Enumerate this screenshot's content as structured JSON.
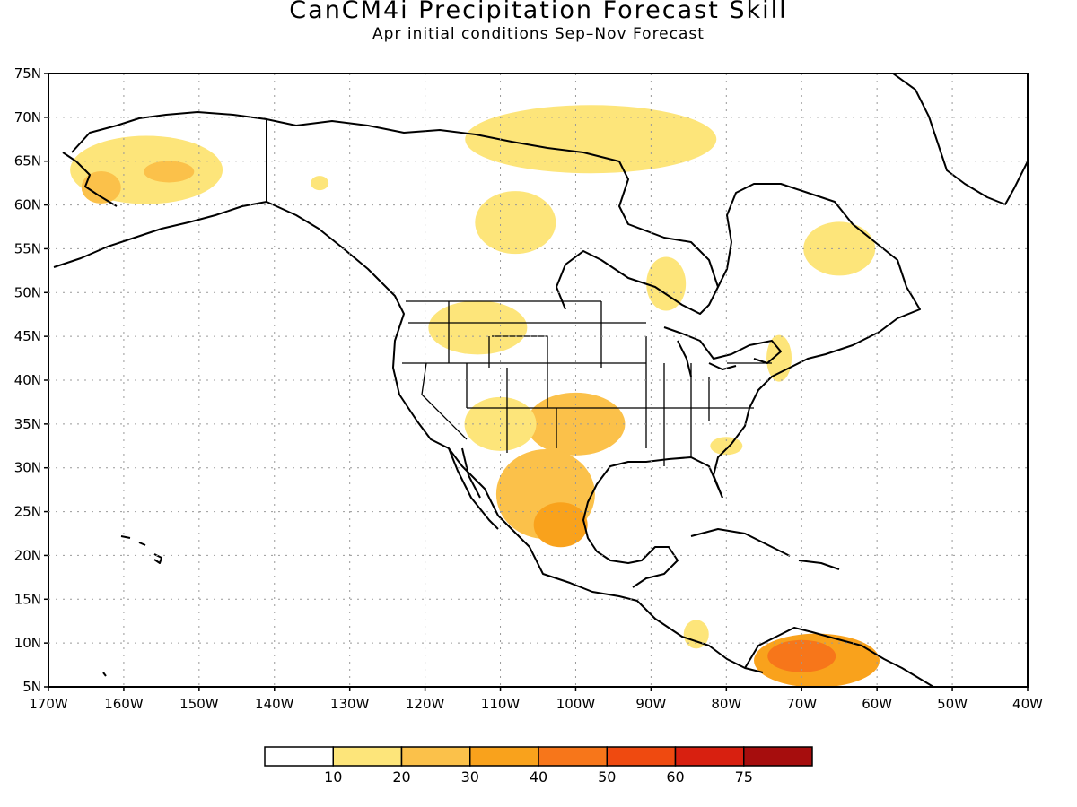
{
  "title": "CanCM4i Precipitation Forecast Skill",
  "subtitle": "Apr initial conditions  Sep–Nov Forecast",
  "map": {
    "lon_range": [
      -170,
      -40
    ],
    "lat_range": [
      5,
      75
    ],
    "lat_ticks": [
      "5N",
      "10N",
      "15N",
      "20N",
      "25N",
      "30N",
      "35N",
      "40N",
      "45N",
      "50N",
      "55N",
      "60N",
      "65N",
      "70N",
      "75N"
    ],
    "lon_ticks": [
      "170W",
      "160W",
      "150W",
      "140W",
      "130W",
      "120W",
      "110W",
      "100W",
      "90W",
      "80W",
      "70W",
      "60W",
      "50W",
      "40W"
    ],
    "grid": "dotted",
    "land_color": "#ffffff",
    "coastline_color": "#000000"
  },
  "skill_regions": [
    {
      "name": "alaska",
      "lon": -157,
      "lat": 64,
      "level": 1
    },
    {
      "name": "alaska-core",
      "lon": -154,
      "lat": 63.8,
      "level": 2
    },
    {
      "name": "southwest-alaska",
      "lon": -163,
      "lat": 62,
      "level": 2
    },
    {
      "name": "yukon-patch",
      "lon": -134,
      "lat": 62.5,
      "level": 1
    },
    {
      "name": "northwest-territories",
      "lon": -108,
      "lat": 58,
      "level": 1
    },
    {
      "name": "canadian-arctic",
      "lon": -98,
      "lat": 67.5,
      "level": 1
    },
    {
      "name": "hudson-patch",
      "lon": -88,
      "lat": 51,
      "level": 1
    },
    {
      "name": "labrador",
      "lon": -65,
      "lat": 55,
      "level": 1
    },
    {
      "name": "northern-rockies",
      "lon": -113,
      "lat": 46,
      "level": 1
    },
    {
      "name": "southern-plains",
      "lon": -100,
      "lat": 35,
      "level": 2
    },
    {
      "name": "colorado-plateau",
      "lon": -110,
      "lat": 35,
      "level": 1
    },
    {
      "name": "northern-mexico",
      "lon": -104,
      "lat": 27,
      "level": 2
    },
    {
      "name": "central-mexico-core",
      "lon": -102,
      "lat": 23.5,
      "level": 3
    },
    {
      "name": "northeast-us",
      "lon": -73,
      "lat": 42.5,
      "level": 1
    },
    {
      "name": "southeast-us",
      "lon": -80,
      "lat": 32.5,
      "level": 1
    },
    {
      "name": "central-america",
      "lon": -84,
      "lat": 11,
      "level": 1
    },
    {
      "name": "venezuela",
      "lon": -68,
      "lat": 8,
      "level": 3
    },
    {
      "name": "venezuela-core",
      "lon": -70,
      "lat": 8.5,
      "level": 4
    }
  ],
  "colorbar": {
    "labels": [
      "10",
      "20",
      "30",
      "40",
      "50",
      "60",
      "75"
    ],
    "colors": [
      "#ffffff",
      "#fde57a",
      "#fbc14a",
      "#f9a21c",
      "#f7761a",
      "#ef4a10",
      "#d82010",
      "#a60d0d"
    ]
  }
}
